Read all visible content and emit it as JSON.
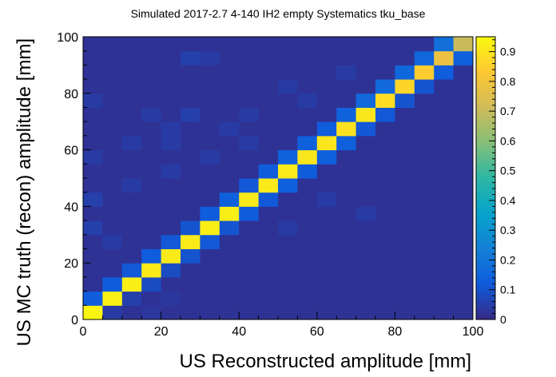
{
  "chart_data": {
    "type": "heatmap",
    "title": "Simulated 2017-2.7 4-140 IH2 empty Systematics tku_base",
    "xlabel": "US Reconstructed amplitude [mm]",
    "ylabel": "US MC truth (recon) amplitude [mm]",
    "xlim": [
      0,
      100
    ],
    "ylim": [
      0,
      100
    ],
    "x_bin_width": 5,
    "y_bin_width": 5,
    "x_ticks": [
      "0",
      "20",
      "40",
      "60",
      "80",
      "100"
    ],
    "y_ticks": [
      "0",
      "20",
      "40",
      "60",
      "80",
      "100"
    ],
    "colorbar": {
      "range": [
        0,
        0.95
      ],
      "ticks": [
        "0",
        "0.1",
        "0.2",
        "0.3",
        "0.4",
        "0.5",
        "0.6",
        "0.7",
        "0.8",
        "0.9"
      ],
      "palette": [
        "#352a87",
        "#0f5cdd",
        "#1481d6",
        "#06a4ca",
        "#2eb7a4",
        "#87bf77",
        "#d1bb59",
        "#fec832",
        "#f9fb0e"
      ]
    },
    "background_value": 0.02,
    "diagonal": [
      0.94,
      0.93,
      0.92,
      0.91,
      0.91,
      0.91,
      0.92,
      0.92,
      0.91,
      0.91,
      0.91,
      0.9,
      0.9,
      0.89,
      0.9,
      0.88,
      0.86,
      0.84,
      0.78,
      0.7
    ],
    "upper_neighbor": [
      0.12,
      0.12,
      0.11,
      0.12,
      0.11,
      0.1,
      0.12,
      0.13,
      0.11,
      0.12,
      0.14,
      0.13,
      0.12,
      0.14,
      0.16,
      0.16,
      0.15,
      0.15,
      0.18
    ],
    "lower_neighbor": [
      0.04,
      0.05,
      0.08,
      0.08,
      0.1,
      0.11,
      0.1,
      0.12,
      0.11,
      0.13,
      0.12,
      0.13,
      0.13,
      0.11,
      0.11,
      0.1,
      0.1,
      0.12,
      0.13
    ],
    "off_diagonal_cells": [
      {
        "x": 5,
        "y": 0,
        "value": 0.03
      },
      {
        "x": 15,
        "y": 0,
        "value": 0.03
      },
      {
        "x": 20,
        "y": 5,
        "value": 0.03
      },
      {
        "x": 5,
        "y": 25,
        "value": 0.04
      },
      {
        "x": 0,
        "y": 30,
        "value": 0.05
      },
      {
        "x": 0,
        "y": 40,
        "value": 0.05
      },
      {
        "x": 10,
        "y": 45,
        "value": 0.04
      },
      {
        "x": 20,
        "y": 50,
        "value": 0.04
      },
      {
        "x": 0,
        "y": 55,
        "value": 0.04
      },
      {
        "x": 10,
        "y": 60,
        "value": 0.04
      },
      {
        "x": 20,
        "y": 60,
        "value": 0.04
      },
      {
        "x": 30,
        "y": 55,
        "value": 0.04
      },
      {
        "x": 40,
        "y": 60,
        "value": 0.04
      },
      {
        "x": 20,
        "y": 65,
        "value": 0.04
      },
      {
        "x": 35,
        "y": 65,
        "value": 0.04
      },
      {
        "x": 15,
        "y": 70,
        "value": 0.04
      },
      {
        "x": 25,
        "y": 70,
        "value": 0.05
      },
      {
        "x": 40,
        "y": 70,
        "value": 0.04
      },
      {
        "x": 55,
        "y": 75,
        "value": 0.04
      },
      {
        "x": 0,
        "y": 75,
        "value": 0.04
      },
      {
        "x": 50,
        "y": 80,
        "value": 0.04
      },
      {
        "x": 65,
        "y": 85,
        "value": 0.04
      },
      {
        "x": 25,
        "y": 90,
        "value": 0.05
      },
      {
        "x": 30,
        "y": 90,
        "value": 0.04
      },
      {
        "x": 60,
        "y": 40,
        "value": 0.04
      },
      {
        "x": 50,
        "y": 30,
        "value": 0.04
      },
      {
        "x": 70,
        "y": 35,
        "value": 0.04
      }
    ]
  }
}
